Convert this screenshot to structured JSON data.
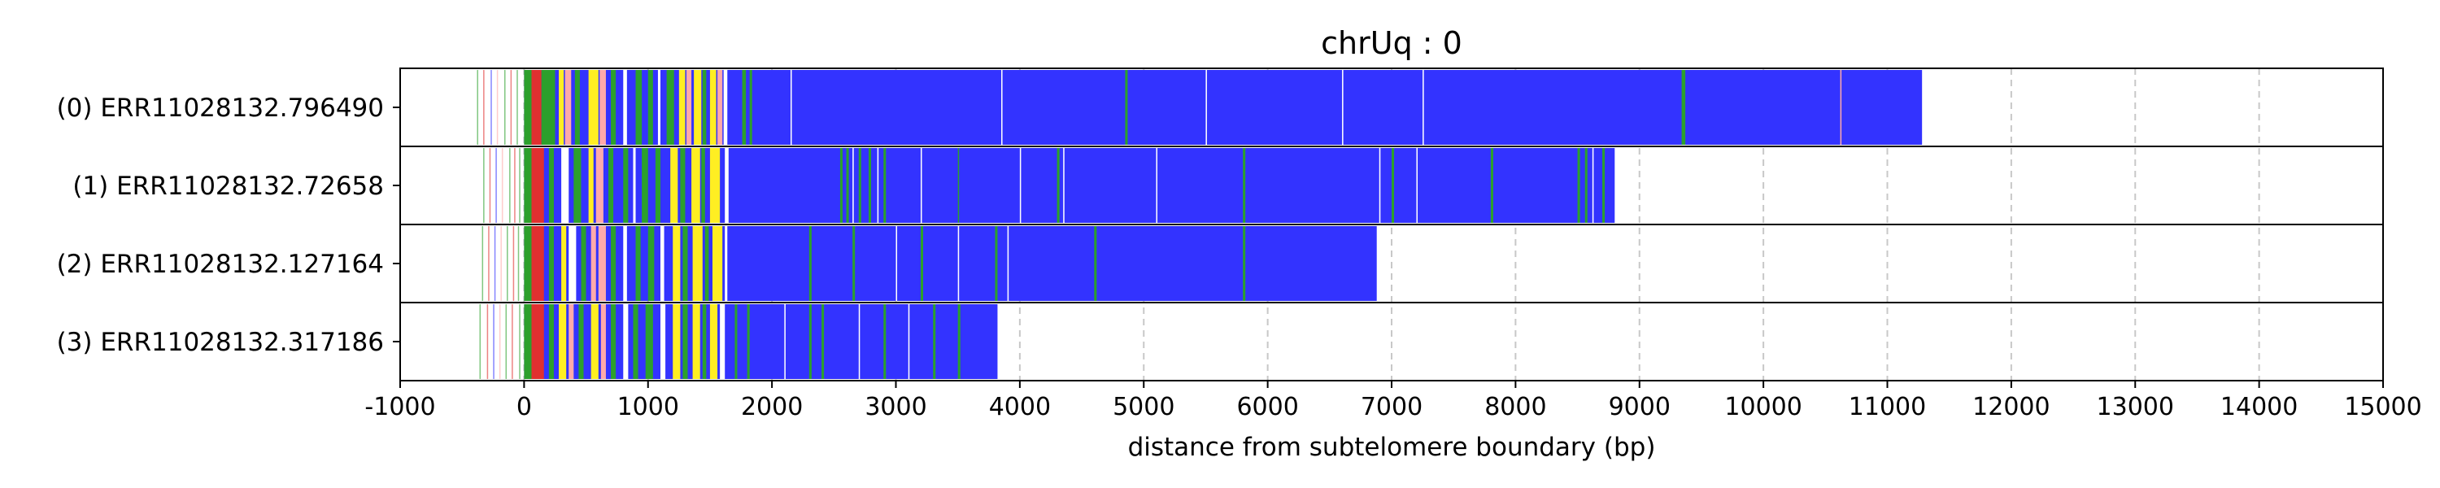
{
  "chart_data": {
    "type": "bar",
    "title": "chrUq : 0",
    "xlabel": "distance from subtelomere boundary (bp)",
    "ylabel": "",
    "xlim": [
      -1000,
      15000
    ],
    "xticks": [
      -1000,
      0,
      1000,
      2000,
      3000,
      4000,
      5000,
      6000,
      7000,
      8000,
      9000,
      10000,
      11000,
      12000,
      13000,
      14000,
      15000
    ],
    "xtick_labels": [
      "-1000",
      "0",
      "1000",
      "2000",
      "3000",
      "4000",
      "5000",
      "6000",
      "7000",
      "8000",
      "9000",
      "10000",
      "11000",
      "12000",
      "13000",
      "14000",
      "15000"
    ],
    "grid": "vertical dashed at x ticks",
    "colors": {
      "main": "#3333ff",
      "green": "#2ca02c",
      "red": "#e03030",
      "yellow": "#ffee22",
      "pink": "#ffaaaa",
      "white": "#ffffff"
    },
    "categories": [
      "(0) ERR11028132.796490",
      "(1) ERR11028132.72658",
      "(2) ERR11028132.127164",
      "(3) ERR11028132.317186"
    ],
    "series": [
      {
        "start": 0,
        "end": 11280,
        "prefix_lines": [
          -380,
          -330,
          -270,
          -220,
          -160,
          -110,
          -60
        ],
        "segments": [
          [
            0,
            60,
            "green"
          ],
          [
            60,
            140,
            "red"
          ],
          [
            140,
            250,
            "green"
          ],
          [
            280,
            320,
            "yellow"
          ],
          [
            330,
            380,
            "pink"
          ],
          [
            410,
            450,
            "green"
          ],
          [
            520,
            600,
            "yellow"
          ],
          [
            610,
            660,
            "pink"
          ],
          [
            700,
            740,
            "green"
          ],
          [
            800,
            830,
            "white"
          ],
          [
            900,
            950,
            "green"
          ],
          [
            1000,
            1040,
            "green"
          ],
          [
            1080,
            1100,
            "white"
          ],
          [
            1150,
            1210,
            "green"
          ],
          [
            1250,
            1300,
            "yellow"
          ],
          [
            1310,
            1350,
            "pink"
          ],
          [
            1370,
            1430,
            "yellow"
          ],
          [
            1440,
            1470,
            "green"
          ],
          [
            1500,
            1550,
            "yellow"
          ],
          [
            1560,
            1600,
            "pink"
          ],
          [
            1610,
            1640,
            "white"
          ],
          [
            1760,
            1790,
            "green"
          ],
          [
            1820,
            1840,
            "green"
          ],
          [
            2150,
            2160,
            "white"
          ],
          [
            3850,
            3860,
            "white"
          ],
          [
            4850,
            4870,
            "green"
          ],
          [
            5500,
            5510,
            "white"
          ],
          [
            6600,
            6610,
            "white"
          ],
          [
            7250,
            7260,
            "white"
          ],
          [
            9340,
            9370,
            "green"
          ],
          [
            10620,
            10630,
            "pink"
          ]
        ]
      },
      {
        "start": 0,
        "end": 8800,
        "prefix_lines": [
          -330,
          -280,
          -230,
          -180,
          -120,
          -80,
          -40
        ],
        "segments": [
          [
            0,
            60,
            "green"
          ],
          [
            60,
            160,
            "red"
          ],
          [
            200,
            240,
            "green"
          ],
          [
            300,
            360,
            "white"
          ],
          [
            400,
            460,
            "green"
          ],
          [
            520,
            560,
            "yellow"
          ],
          [
            580,
            640,
            "pink"
          ],
          [
            680,
            720,
            "green"
          ],
          [
            800,
            840,
            "green"
          ],
          [
            880,
            900,
            "white"
          ],
          [
            950,
            1000,
            "green"
          ],
          [
            1060,
            1100,
            "green"
          ],
          [
            1180,
            1240,
            "yellow"
          ],
          [
            1260,
            1300,
            "green"
          ],
          [
            1350,
            1420,
            "yellow"
          ],
          [
            1430,
            1460,
            "green"
          ],
          [
            1500,
            1580,
            "yellow"
          ],
          [
            1620,
            1650,
            "white"
          ],
          [
            2550,
            2570,
            "green"
          ],
          [
            2600,
            2620,
            "green"
          ],
          [
            2650,
            2660,
            "white"
          ],
          [
            2700,
            2720,
            "green"
          ],
          [
            2780,
            2800,
            "green"
          ],
          [
            2850,
            2860,
            "white"
          ],
          [
            2900,
            2920,
            "green"
          ],
          [
            3200,
            3210,
            "white"
          ],
          [
            3500,
            3510,
            "green"
          ],
          [
            4000,
            4010,
            "white"
          ],
          [
            4300,
            4320,
            "green"
          ],
          [
            4350,
            4360,
            "white"
          ],
          [
            5100,
            5110,
            "white"
          ],
          [
            5800,
            5820,
            "green"
          ],
          [
            6900,
            6910,
            "white"
          ],
          [
            7000,
            7020,
            "green"
          ],
          [
            7200,
            7210,
            "white"
          ],
          [
            7800,
            7820,
            "green"
          ],
          [
            8500,
            8520,
            "green"
          ],
          [
            8560,
            8580,
            "green"
          ],
          [
            8620,
            8630,
            "white"
          ],
          [
            8700,
            8720,
            "green"
          ]
        ]
      },
      {
        "start": 0,
        "end": 6880,
        "prefix_lines": [
          -340,
          -290,
          -240,
          -190,
          -140,
          -90,
          -50
        ],
        "segments": [
          [
            0,
            60,
            "green"
          ],
          [
            60,
            160,
            "red"
          ],
          [
            200,
            240,
            "green"
          ],
          [
            300,
            340,
            "yellow"
          ],
          [
            360,
            420,
            "white"
          ],
          [
            460,
            500,
            "green"
          ],
          [
            540,
            580,
            "pink"
          ],
          [
            600,
            660,
            "pink"
          ],
          [
            700,
            740,
            "green"
          ],
          [
            800,
            830,
            "white"
          ],
          [
            900,
            940,
            "green"
          ],
          [
            1000,
            1050,
            "green"
          ],
          [
            1100,
            1130,
            "white"
          ],
          [
            1200,
            1260,
            "yellow"
          ],
          [
            1280,
            1320,
            "green"
          ],
          [
            1360,
            1440,
            "yellow"
          ],
          [
            1460,
            1490,
            "green"
          ],
          [
            1520,
            1600,
            "yellow"
          ],
          [
            1620,
            1640,
            "white"
          ],
          [
            2300,
            2320,
            "green"
          ],
          [
            2650,
            2670,
            "green"
          ],
          [
            3000,
            3010,
            "white"
          ],
          [
            3200,
            3220,
            "green"
          ],
          [
            3500,
            3510,
            "white"
          ],
          [
            3800,
            3820,
            "green"
          ],
          [
            3900,
            3910,
            "white"
          ],
          [
            4600,
            4620,
            "green"
          ],
          [
            5800,
            5820,
            "green"
          ]
        ]
      },
      {
        "start": 0,
        "end": 3820,
        "prefix_lines": [
          -360,
          -300,
          -250,
          -200,
          -150,
          -100,
          -40
        ],
        "segments": [
          [
            0,
            60,
            "green"
          ],
          [
            60,
            160,
            "red"
          ],
          [
            200,
            240,
            "green"
          ],
          [
            280,
            340,
            "yellow"
          ],
          [
            360,
            400,
            "pink"
          ],
          [
            440,
            480,
            "green"
          ],
          [
            540,
            600,
            "yellow"
          ],
          [
            620,
            660,
            "pink"
          ],
          [
            700,
            740,
            "green"
          ],
          [
            800,
            840,
            "white"
          ],
          [
            880,
            920,
            "green"
          ],
          [
            980,
            1040,
            "green"
          ],
          [
            1100,
            1140,
            "white"
          ],
          [
            1200,
            1260,
            "yellow"
          ],
          [
            1280,
            1320,
            "green"
          ],
          [
            1360,
            1420,
            "yellow"
          ],
          [
            1440,
            1470,
            "green"
          ],
          [
            1500,
            1560,
            "yellow"
          ],
          [
            1580,
            1620,
            "white"
          ],
          [
            1700,
            1720,
            "green"
          ],
          [
            1800,
            1820,
            "green"
          ],
          [
            2100,
            2110,
            "white"
          ],
          [
            2300,
            2320,
            "green"
          ],
          [
            2400,
            2420,
            "green"
          ],
          [
            2700,
            2710,
            "white"
          ],
          [
            2900,
            2920,
            "green"
          ],
          [
            3100,
            3110,
            "white"
          ],
          [
            3300,
            3320,
            "green"
          ],
          [
            3500,
            3520,
            "green"
          ]
        ]
      }
    ]
  }
}
